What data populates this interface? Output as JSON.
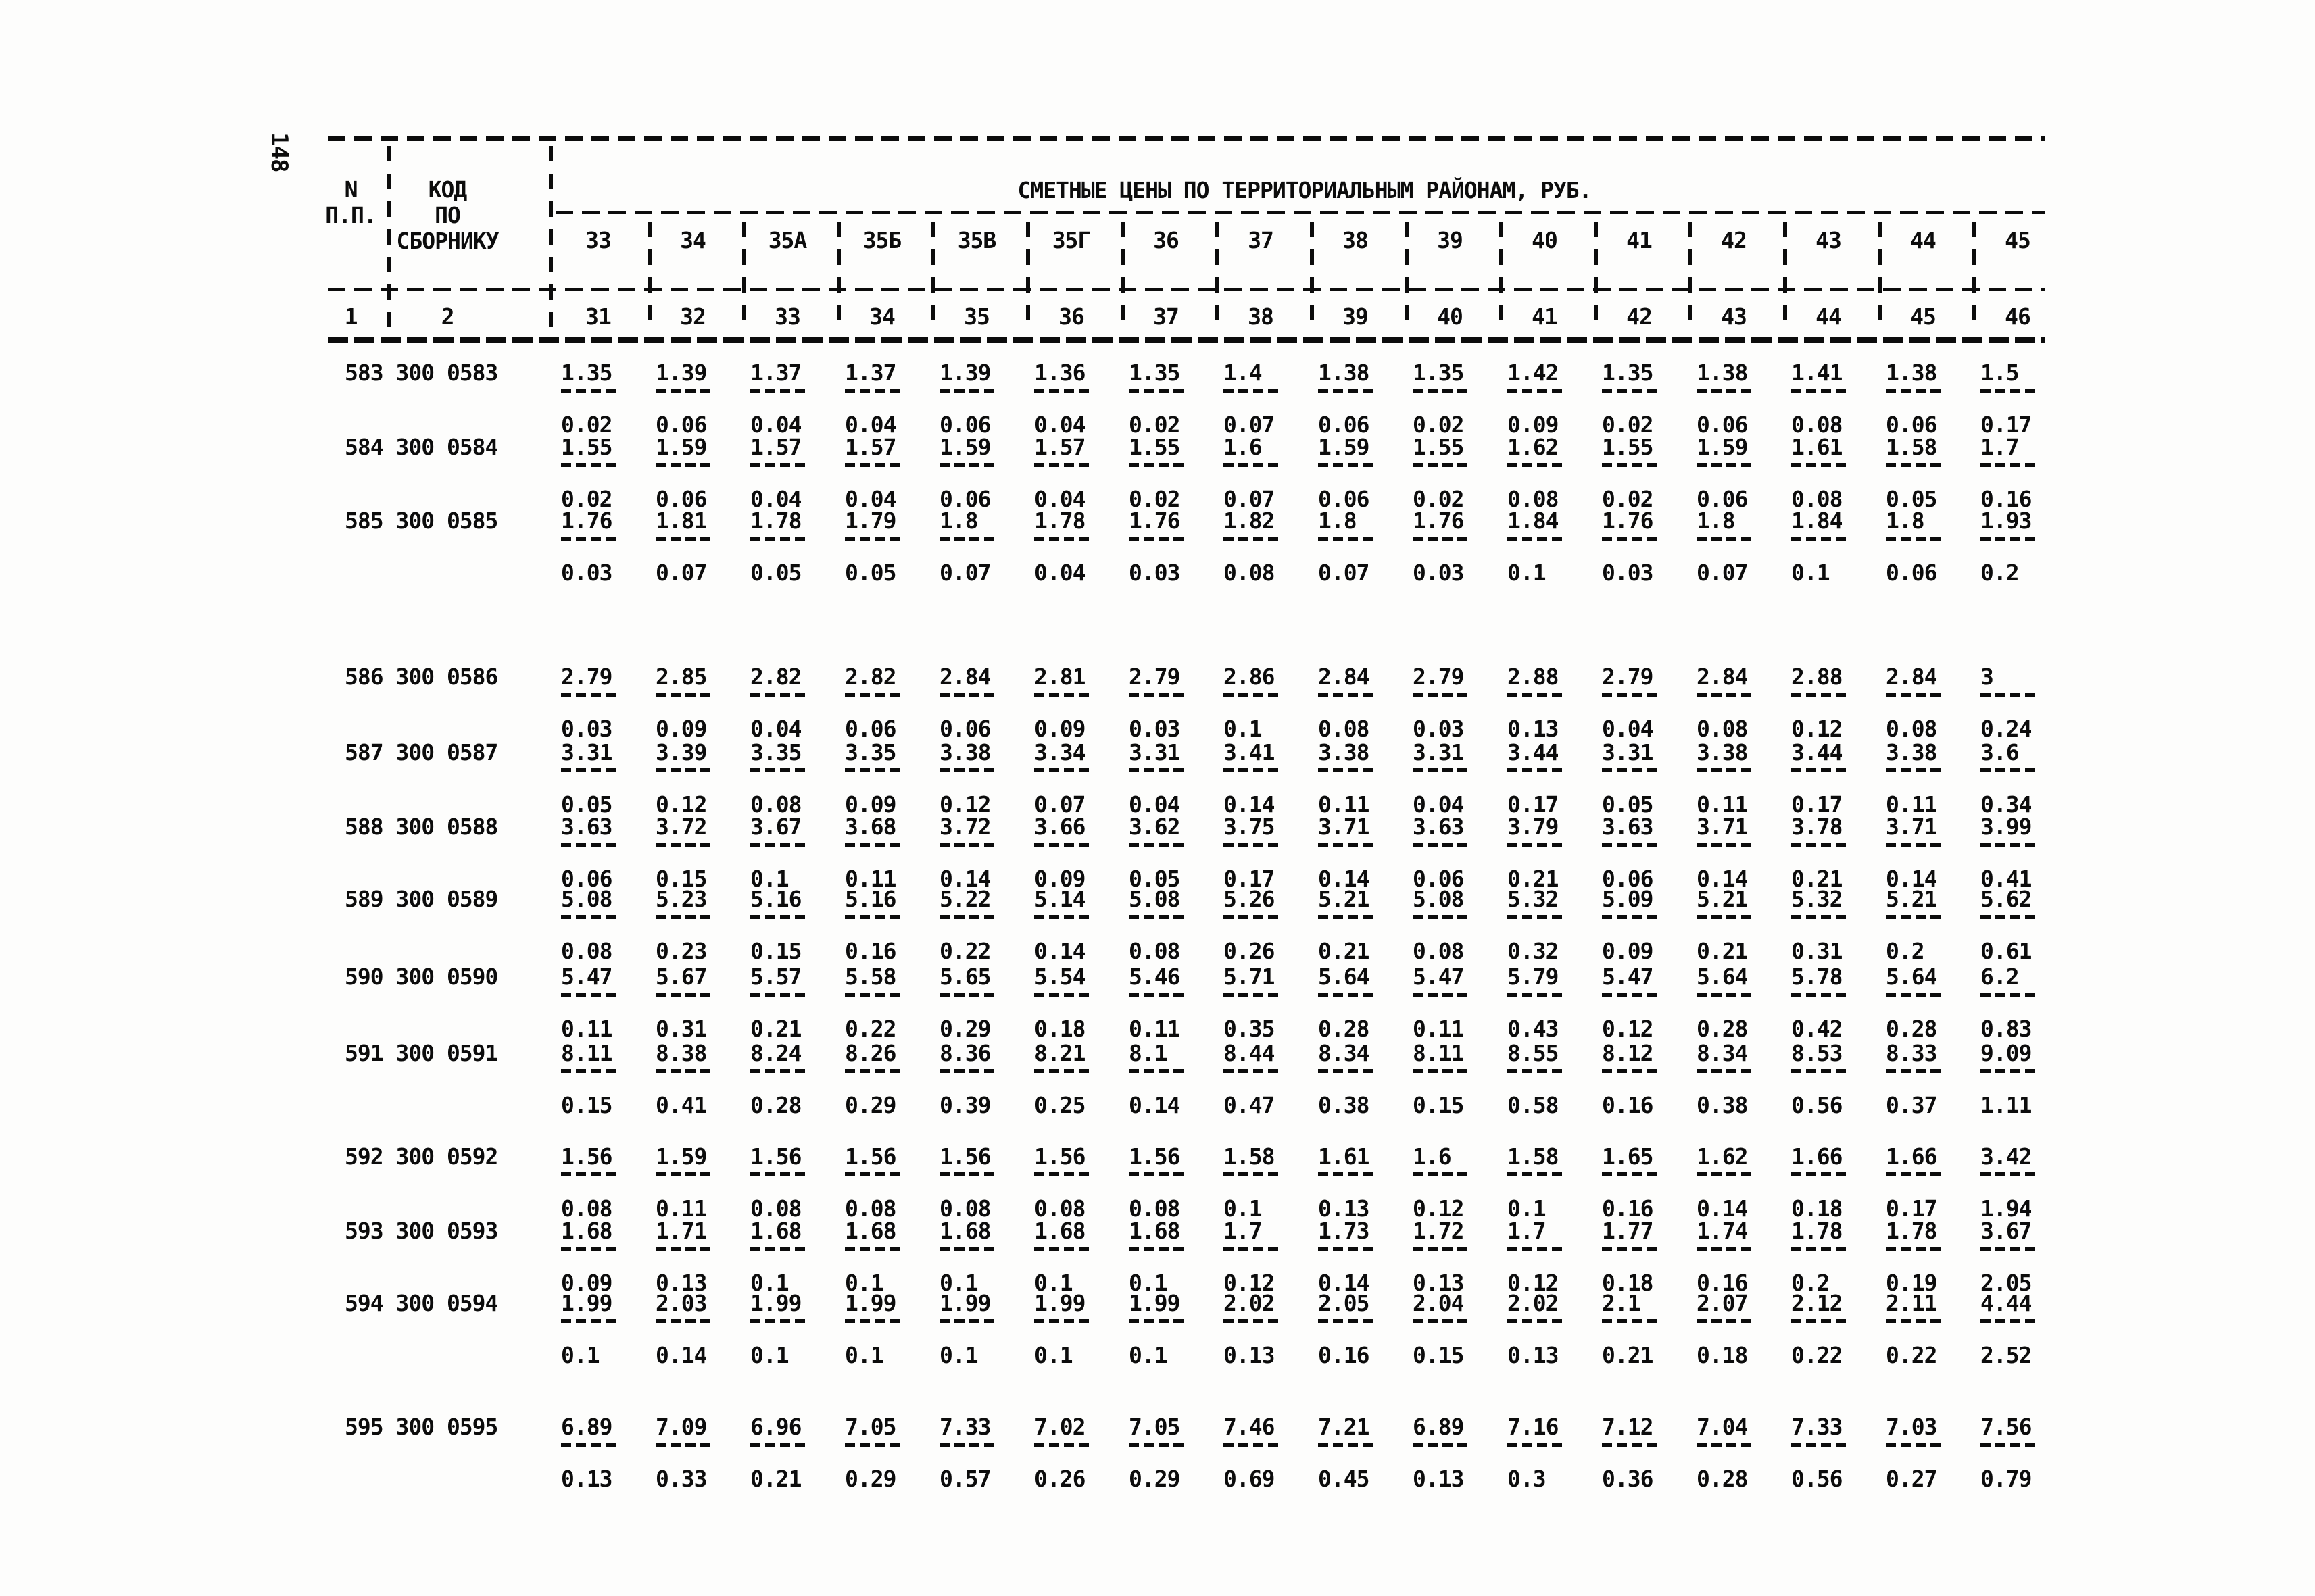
{
  "page": {
    "number": "148"
  },
  "table": {
    "title": "СМЕТНЫЕ ЦЕНЫ ПО ТЕРРИТОРИАЛЬНЫМ РАЙОНАМ, РУБ.",
    "header": {
      "col1": "N\nП.П.",
      "col2": "КОД\nПО\nСБОРНИКУ",
      "col1_num": "1",
      "col2_num": "2",
      "districts": [
        "33",
        "34",
        "35А",
        "35Б",
        "35В",
        "35Г",
        "36",
        "37",
        "38",
        "39",
        "40",
        "41",
        "42",
        "43",
        "44",
        "45"
      ],
      "column_numbers": [
        "31",
        "32",
        "33",
        "34",
        "35",
        "36",
        "37",
        "38",
        "39",
        "40",
        "41",
        "42",
        "43",
        "44",
        "45",
        "46"
      ]
    },
    "rows": [
      {
        "code": "583 300 0583",
        "upper": [
          "1.35",
          "1.39",
          "1.37",
          "1.37",
          "1.39",
          "1.36",
          "1.35",
          "1.4",
          "1.38",
          "1.35",
          "1.42",
          "1.35",
          "1.38",
          "1.41",
          "1.38",
          "1.5"
        ],
        "lower": [
          "0.02",
          "0.06",
          "0.04",
          "0.04",
          "0.06",
          "0.04",
          "0.02",
          "0.07",
          "0.06",
          "0.02",
          "0.09",
          "0.02",
          "0.06",
          "0.08",
          "0.06",
          "0.17"
        ]
      },
      {
        "code": "584 300 0584",
        "upper": [
          "1.55",
          "1.59",
          "1.57",
          "1.57",
          "1.59",
          "1.57",
          "1.55",
          "1.6",
          "1.59",
          "1.55",
          "1.62",
          "1.55",
          "1.59",
          "1.61",
          "1.58",
          "1.7"
        ],
        "lower": [
          "0.02",
          "0.06",
          "0.04",
          "0.04",
          "0.06",
          "0.04",
          "0.02",
          "0.07",
          "0.06",
          "0.02",
          "0.08",
          "0.02",
          "0.06",
          "0.08",
          "0.05",
          "0.16"
        ]
      },
      {
        "code": "585 300 0585",
        "upper": [
          "1.76",
          "1.81",
          "1.78",
          "1.79",
          "1.8",
          "1.78",
          "1.76",
          "1.82",
          "1.8",
          "1.76",
          "1.84",
          "1.76",
          "1.8",
          "1.84",
          "1.8",
          "1.93"
        ],
        "lower": [
          "0.03",
          "0.07",
          "0.05",
          "0.05",
          "0.07",
          "0.04",
          "0.03",
          "0.08",
          "0.07",
          "0.03",
          "0.1",
          "0.03",
          "0.07",
          "0.1",
          "0.06",
          "0.2"
        ]
      },
      {
        "code": "586 300 0586",
        "upper": [
          "2.79",
          "2.85",
          "2.82",
          "2.82",
          "2.84",
          "2.81",
          "2.79",
          "2.86",
          "2.84",
          "2.79",
          "2.88",
          "2.79",
          "2.84",
          "2.88",
          "2.84",
          "3"
        ],
        "lower": [
          "0.03",
          "0.09",
          "0.04",
          "0.06",
          "0.06",
          "0.09",
          "0.03",
          "0.1",
          "0.08",
          "0.03",
          "0.13",
          "0.04",
          "0.08",
          "0.12",
          "0.08",
          "0.24"
        ]
      },
      {
        "code": "587 300 0587",
        "upper": [
          "3.31",
          "3.39",
          "3.35",
          "3.35",
          "3.38",
          "3.34",
          "3.31",
          "3.41",
          "3.38",
          "3.31",
          "3.44",
          "3.31",
          "3.38",
          "3.44",
          "3.38",
          "3.6"
        ],
        "lower": [
          "0.05",
          "0.12",
          "0.08",
          "0.09",
          "0.12",
          "0.07",
          "0.04",
          "0.14",
          "0.11",
          "0.04",
          "0.17",
          "0.05",
          "0.11",
          "0.17",
          "0.11",
          "0.34"
        ]
      },
      {
        "code": "588 300 0588",
        "upper": [
          "3.63",
          "3.72",
          "3.67",
          "3.68",
          "3.72",
          "3.66",
          "3.62",
          "3.75",
          "3.71",
          "3.63",
          "3.79",
          "3.63",
          "3.71",
          "3.78",
          "3.71",
          "3.99"
        ],
        "lower": [
          "0.06",
          "0.15",
          "0.1",
          "0.11",
          "0.14",
          "0.09",
          "0.05",
          "0.17",
          "0.14",
          "0.06",
          "0.21",
          "0.06",
          "0.14",
          "0.21",
          "0.14",
          "0.41"
        ]
      },
      {
        "code": "589 300 0589",
        "upper": [
          "5.08",
          "5.23",
          "5.16",
          "5.16",
          "5.22",
          "5.14",
          "5.08",
          "5.26",
          "5.21",
          "5.08",
          "5.32",
          "5.09",
          "5.21",
          "5.32",
          "5.21",
          "5.62"
        ],
        "lower": [
          "0.08",
          "0.23",
          "0.15",
          "0.16",
          "0.22",
          "0.14",
          "0.08",
          "0.26",
          "0.21",
          "0.08",
          "0.32",
          "0.09",
          "0.21",
          "0.31",
          "0.2",
          "0.61"
        ]
      },
      {
        "code": "590 300 0590",
        "upper": [
          "5.47",
          "5.67",
          "5.57",
          "5.58",
          "5.65",
          "5.54",
          "5.46",
          "5.71",
          "5.64",
          "5.47",
          "5.79",
          "5.47",
          "5.64",
          "5.78",
          "5.64",
          "6.2"
        ],
        "lower": [
          "0.11",
          "0.31",
          "0.21",
          "0.22",
          "0.29",
          "0.18",
          "0.11",
          "0.35",
          "0.28",
          "0.11",
          "0.43",
          "0.12",
          "0.28",
          "0.42",
          "0.28",
          "0.83"
        ]
      },
      {
        "code": "591 300 0591",
        "upper": [
          "8.11",
          "8.38",
          "8.24",
          "8.26",
          "8.36",
          "8.21",
          "8.1",
          "8.44",
          "8.34",
          "8.11",
          "8.55",
          "8.12",
          "8.34",
          "8.53",
          "8.33",
          "9.09"
        ],
        "lower": [
          "0.15",
          "0.41",
          "0.28",
          "0.29",
          "0.39",
          "0.25",
          "0.14",
          "0.47",
          "0.38",
          "0.15",
          "0.58",
          "0.16",
          "0.38",
          "0.56",
          "0.37",
          "1.11"
        ]
      },
      {
        "code": "592 300 0592",
        "upper": [
          "1.56",
          "1.59",
          "1.56",
          "1.56",
          "1.56",
          "1.56",
          "1.56",
          "1.58",
          "1.61",
          "1.6",
          "1.58",
          "1.65",
          "1.62",
          "1.66",
          "1.66",
          "3.42"
        ],
        "lower": [
          "0.08",
          "0.11",
          "0.08",
          "0.08",
          "0.08",
          "0.08",
          "0.08",
          "0.1",
          "0.13",
          "0.12",
          "0.1",
          "0.16",
          "0.14",
          "0.18",
          "0.17",
          "1.94"
        ]
      },
      {
        "code": "593 300 0593",
        "upper": [
          "1.68",
          "1.71",
          "1.68",
          "1.68",
          "1.68",
          "1.68",
          "1.68",
          "1.7",
          "1.73",
          "1.72",
          "1.7",
          "1.77",
          "1.74",
          "1.78",
          "1.78",
          "3.67"
        ],
        "lower": [
          "0.09",
          "0.13",
          "0.1",
          "0.1",
          "0.1",
          "0.1",
          "0.1",
          "0.12",
          "0.14",
          "0.13",
          "0.12",
          "0.18",
          "0.16",
          "0.2",
          "0.19",
          "2.05"
        ]
      },
      {
        "code": "594 300 0594",
        "upper": [
          "1.99",
          "2.03",
          "1.99",
          "1.99",
          "1.99",
          "1.99",
          "1.99",
          "2.02",
          "2.05",
          "2.04",
          "2.02",
          "2.1",
          "2.07",
          "2.12",
          "2.11",
          "4.44"
        ],
        "lower": [
          "0.1",
          "0.14",
          "0.1",
          "0.1",
          "0.1",
          "0.1",
          "0.1",
          "0.13",
          "0.16",
          "0.15",
          "0.13",
          "0.21",
          "0.18",
          "0.22",
          "0.22",
          "2.52"
        ]
      },
      {
        "code": "595 300 0595",
        "upper": [
          "6.89",
          "7.09",
          "6.96",
          "7.05",
          "7.33",
          "7.02",
          "7.05",
          "7.46",
          "7.21",
          "6.89",
          "7.16",
          "7.12",
          "7.04",
          "7.33",
          "7.03",
          "7.56"
        ],
        "lower": [
          "0.13",
          "0.33",
          "0.21",
          "0.29",
          "0.57",
          "0.26",
          "0.29",
          "0.69",
          "0.45",
          "0.13",
          "0.3",
          "0.36",
          "0.28",
          "0.56",
          "0.27",
          "0.79"
        ]
      }
    ]
  }
}
